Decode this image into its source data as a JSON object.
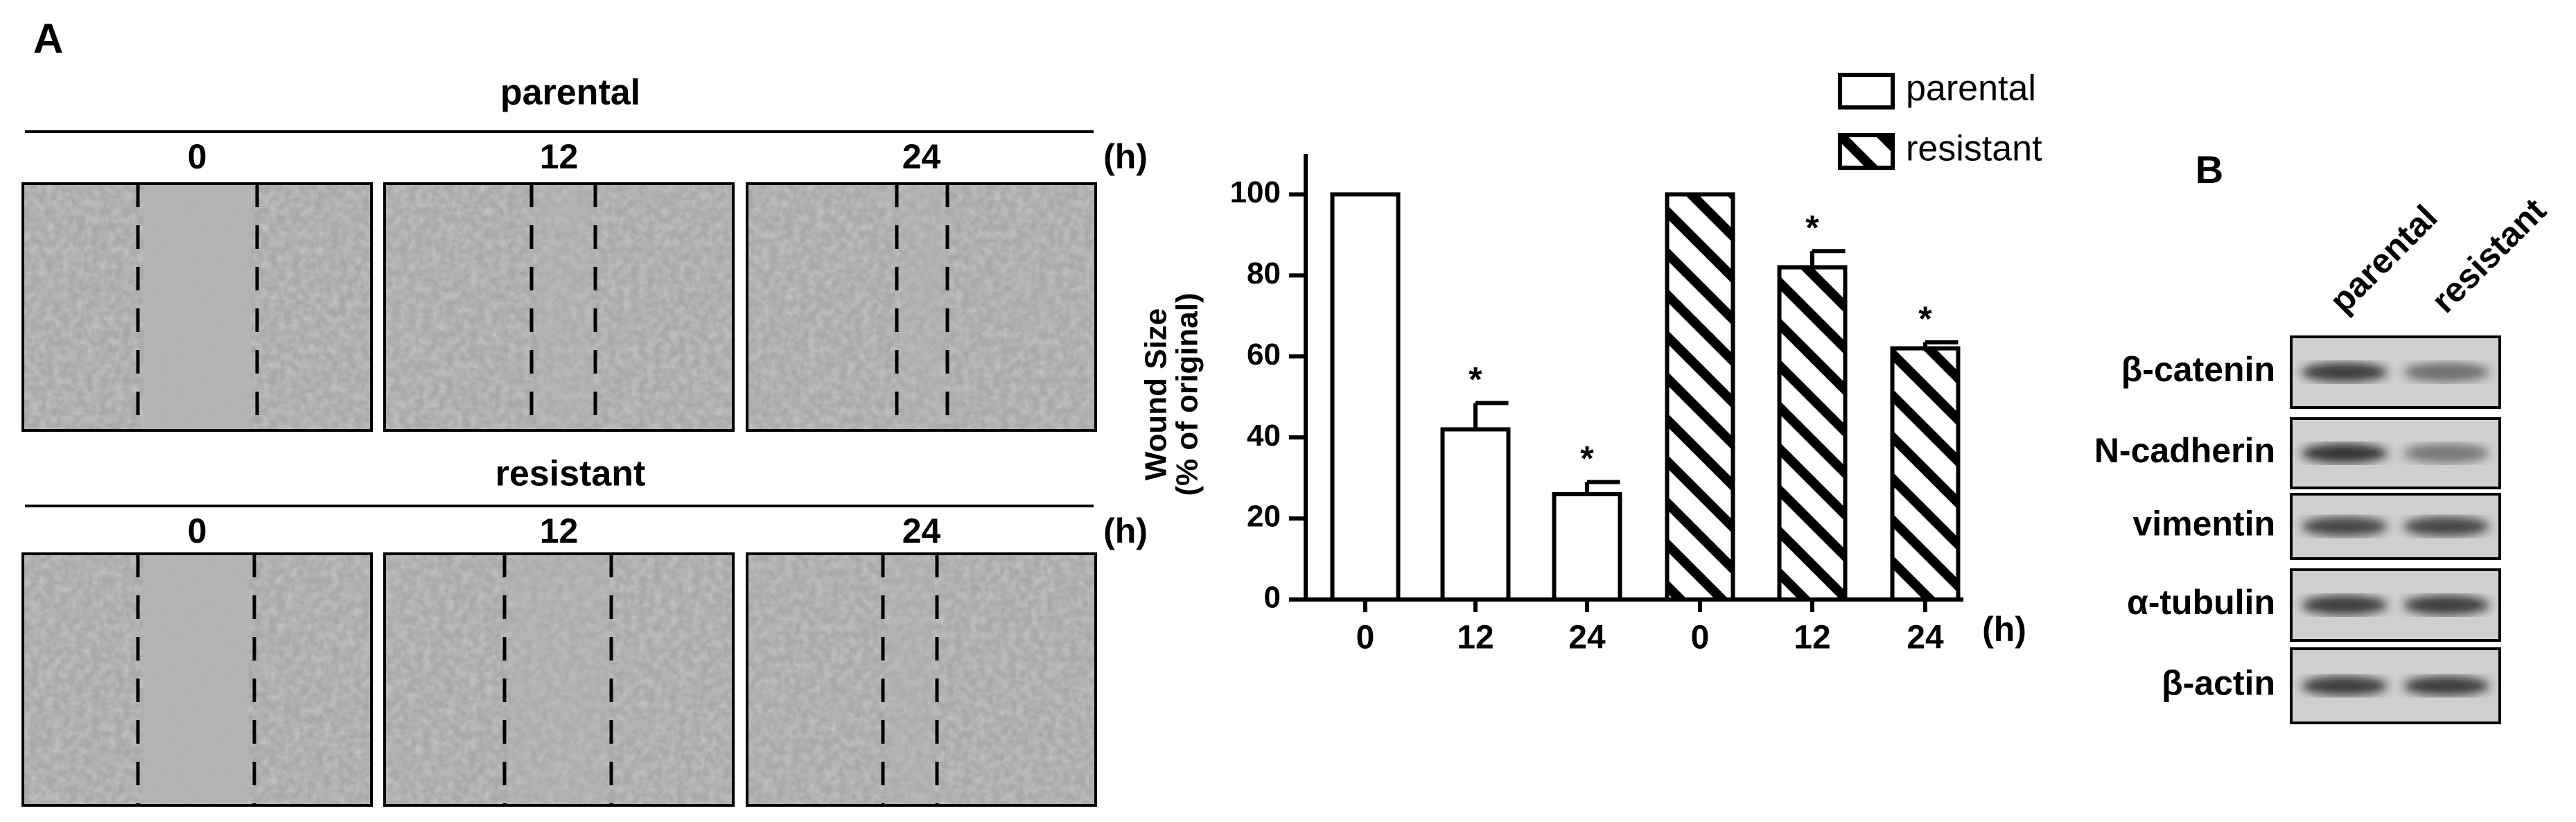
{
  "panel_a": {
    "label": "A",
    "groups": [
      {
        "title": "parental",
        "times": [
          "0",
          "12",
          "24"
        ],
        "unit": "(h)"
      },
      {
        "title": "resistant",
        "times": [
          "0",
          "12",
          "24"
        ],
        "unit": "(h)"
      }
    ]
  },
  "chart_data": {
    "type": "bar",
    "y_label": [
      "Wound Size",
      "(% of original)"
    ],
    "x_label": "(h)",
    "categories": [
      "0",
      "12",
      "24"
    ],
    "series": [
      {
        "name": "parental",
        "color": "#ffffff",
        "hatch": false,
        "values": [
          100,
          42,
          26
        ],
        "errors": [
          0,
          6.5,
          3
        ],
        "annotations": [
          null,
          "*",
          "*"
        ]
      },
      {
        "name": "resistant",
        "color": "#ffffff",
        "hatch": true,
        "values": [
          100,
          82,
          62
        ],
        "errors": [
          0,
          4,
          1.5
        ],
        "annotations": [
          null,
          "*",
          "*"
        ]
      }
    ],
    "ylim": [
      0,
      110
    ],
    "yticks": [
      0,
      20,
      40,
      60,
      80,
      100
    ],
    "legend": "top-right"
  },
  "panel_b": {
    "label": "B",
    "lanes": [
      "parental",
      "resistant"
    ],
    "proteins": [
      "β-catenin",
      "N-cadherin",
      "vimentin",
      "α-tubulin",
      "β-actin"
    ]
  }
}
